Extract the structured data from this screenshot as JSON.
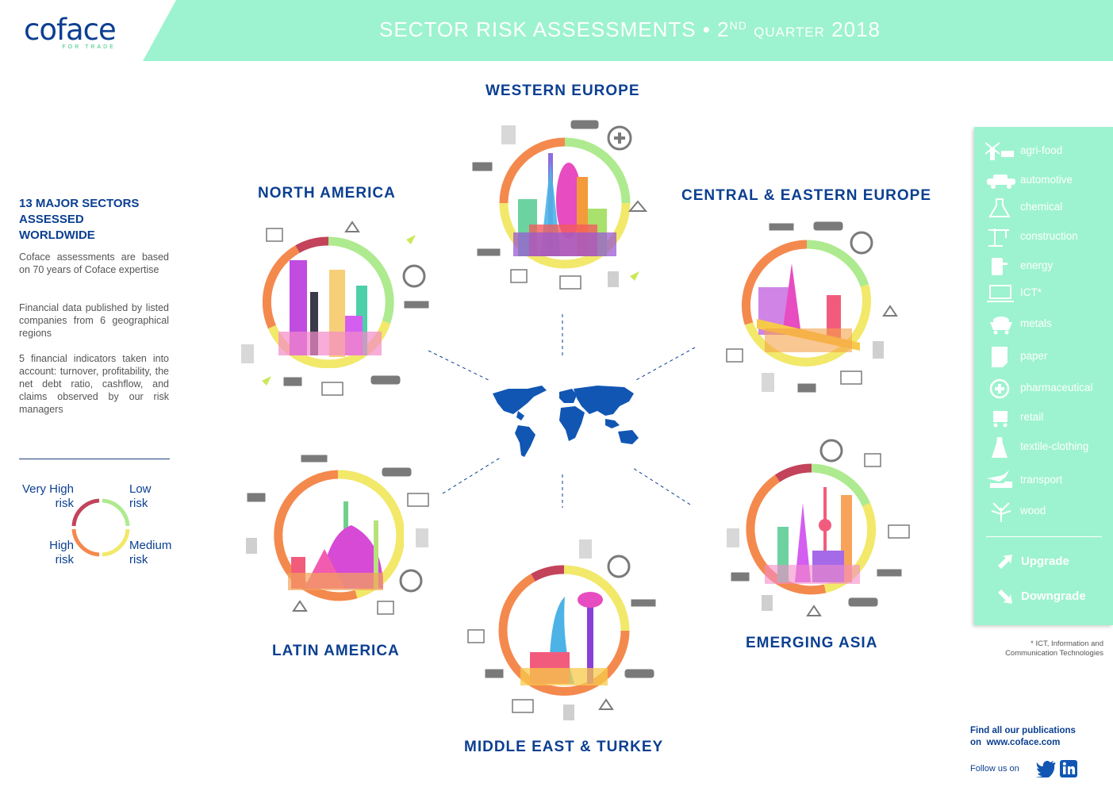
{
  "logo": {
    "word": "coface",
    "tagline": "FOR TRADE"
  },
  "header": {
    "title_main": "SECTOR RISK ASSESSMENTS • 2",
    "title_sup": "ND",
    "title_small": "QUARTER",
    "title_year": "2018"
  },
  "left": {
    "heading_lines": [
      "13 MAJOR SECTORS",
      "ASSESSED",
      "WORLDWIDE"
    ],
    "para1": "Coface assessments are based on 70 years of Coface expertise",
    "para2": "Financial data published by listed companies from 6 geographical regions",
    "para3": "5 financial indicators taken into account: turnover, profitability, the net debt ratio, cashflow, and claims observed by our risk managers"
  },
  "legend": {
    "very_high": [
      "Very High",
      "risk"
    ],
    "low": [
      "Low",
      "risk"
    ],
    "high": [
      "High",
      "risk"
    ],
    "medium": [
      "Medium",
      "risk"
    ]
  },
  "colors": {
    "header_mint": "#9df3cf",
    "navy": "#0b3f91",
    "very_high": "#c2435a",
    "high": "#f4894e",
    "medium": "#f2e86a",
    "low": "#aeea8f",
    "icon_gray": "#777777",
    "upgrade": "#c9e85a"
  },
  "regions": {
    "western_europe": "WESTERN EUROPE",
    "north_america": "NORTH AMERICA",
    "central_eastern_europe": "CENTRAL & EASTERN EUROPE",
    "latin_america": "LATIN AMERICA",
    "emerging_asia": "EMERGING ASIA",
    "middle_east_turkey": "MIDDLE EAST & TURKEY"
  },
  "sectors": [
    {
      "label": "agri-food",
      "icon": "windmill-cow-icon"
    },
    {
      "label": "automotive",
      "icon": "car-icon"
    },
    {
      "label": "chemical",
      "icon": "flask-icon"
    },
    {
      "label": "construction",
      "icon": "crane-icon"
    },
    {
      "label": "energy",
      "icon": "fuel-pump-icon"
    },
    {
      "label": "ICT*",
      "icon": "laptop-icon"
    },
    {
      "label": "metals",
      "icon": "ore-cart-icon"
    },
    {
      "label": "paper",
      "icon": "paper-icon"
    },
    {
      "label": "pharmaceutical",
      "icon": "medical-cross-icon"
    },
    {
      "label": "retail",
      "icon": "shopping-cart-icon"
    },
    {
      "label": "textile-clothing",
      "icon": "dress-icon"
    },
    {
      "label": "transport",
      "icon": "plane-truck-icon"
    },
    {
      "label": "wood",
      "icon": "tree-icon"
    }
  ],
  "arrows": {
    "upgrade": "Upgrade",
    "downgrade": "Downgrade"
  },
  "footnote": [
    "* ICT, Information and",
    "Communication Technologies"
  ],
  "publications": {
    "line1": "Find all our publications",
    "line2_prefix": "on",
    "url": "www.coface.com"
  },
  "follow": {
    "label": "Follow us on"
  }
}
